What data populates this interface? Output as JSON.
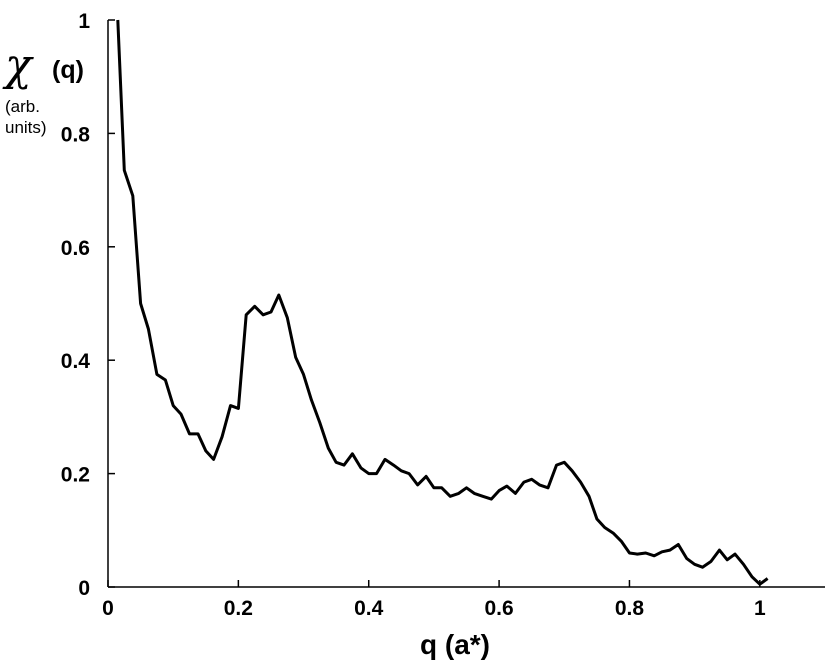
{
  "chart_data": {
    "type": "line",
    "title": "",
    "xlabel": "q (a*)",
    "ylabel": {
      "symbol": "χ",
      "main": "(q)",
      "units_line1": "(arb.",
      "units_line2": "units)"
    },
    "xlim": [
      0,
      1.1
    ],
    "ylim": [
      0,
      1
    ],
    "x_ticks": [
      0,
      0.2,
      0.4,
      0.6,
      0.8,
      1
    ],
    "x_tick_labels": [
      "0",
      "0.2",
      "0.4",
      "0.6",
      "0.8",
      "1"
    ],
    "y_ticks": [
      0,
      0.2,
      0.4,
      0.6,
      0.8,
      1
    ],
    "y_tick_labels": [
      "0",
      "0.2",
      "0.4",
      "0.6",
      "0.8",
      "1"
    ],
    "grid": false,
    "line_color": "#000000",
    "series": [
      {
        "x": [
          0.015,
          0.025,
          0.038,
          0.05,
          0.062,
          0.075,
          0.088,
          0.1,
          0.112,
          0.125,
          0.138,
          0.15,
          0.162,
          0.175,
          0.188,
          0.2,
          0.212,
          0.225,
          0.238,
          0.25,
          0.262,
          0.275,
          0.288,
          0.3,
          0.312,
          0.325,
          0.338,
          0.35,
          0.362,
          0.375,
          0.388,
          0.4,
          0.412,
          0.425,
          0.438,
          0.45,
          0.462,
          0.475,
          0.488,
          0.5,
          0.512,
          0.525,
          0.538,
          0.55,
          0.562,
          0.575,
          0.588,
          0.6,
          0.612,
          0.625,
          0.638,
          0.65,
          0.662,
          0.675,
          0.688,
          0.7,
          0.712,
          0.725,
          0.738,
          0.75,
          0.762,
          0.775,
          0.788,
          0.8,
          0.812,
          0.825,
          0.838,
          0.85,
          0.862,
          0.875,
          0.888,
          0.9,
          0.912,
          0.925,
          0.938,
          0.95,
          0.962,
          0.975,
          0.988,
          1.0,
          1.012
        ],
        "y": [
          1.0,
          0.735,
          0.69,
          0.5,
          0.455,
          0.375,
          0.365,
          0.32,
          0.305,
          0.27,
          0.27,
          0.24,
          0.225,
          0.265,
          0.32,
          0.315,
          0.48,
          0.495,
          0.48,
          0.485,
          0.515,
          0.475,
          0.405,
          0.375,
          0.33,
          0.29,
          0.245,
          0.22,
          0.215,
          0.235,
          0.21,
          0.2,
          0.2,
          0.225,
          0.215,
          0.205,
          0.2,
          0.18,
          0.195,
          0.175,
          0.175,
          0.16,
          0.165,
          0.175,
          0.165,
          0.16,
          0.155,
          0.17,
          0.178,
          0.165,
          0.185,
          0.19,
          0.18,
          0.175,
          0.215,
          0.22,
          0.205,
          0.185,
          0.16,
          0.12,
          0.105,
          0.095,
          0.08,
          0.06,
          0.058,
          0.06,
          0.055,
          0.062,
          0.065,
          0.075,
          0.05,
          0.04,
          0.035,
          0.045,
          0.065,
          0.048,
          0.058,
          0.04,
          0.018,
          0.005,
          0.015
        ]
      }
    ]
  }
}
